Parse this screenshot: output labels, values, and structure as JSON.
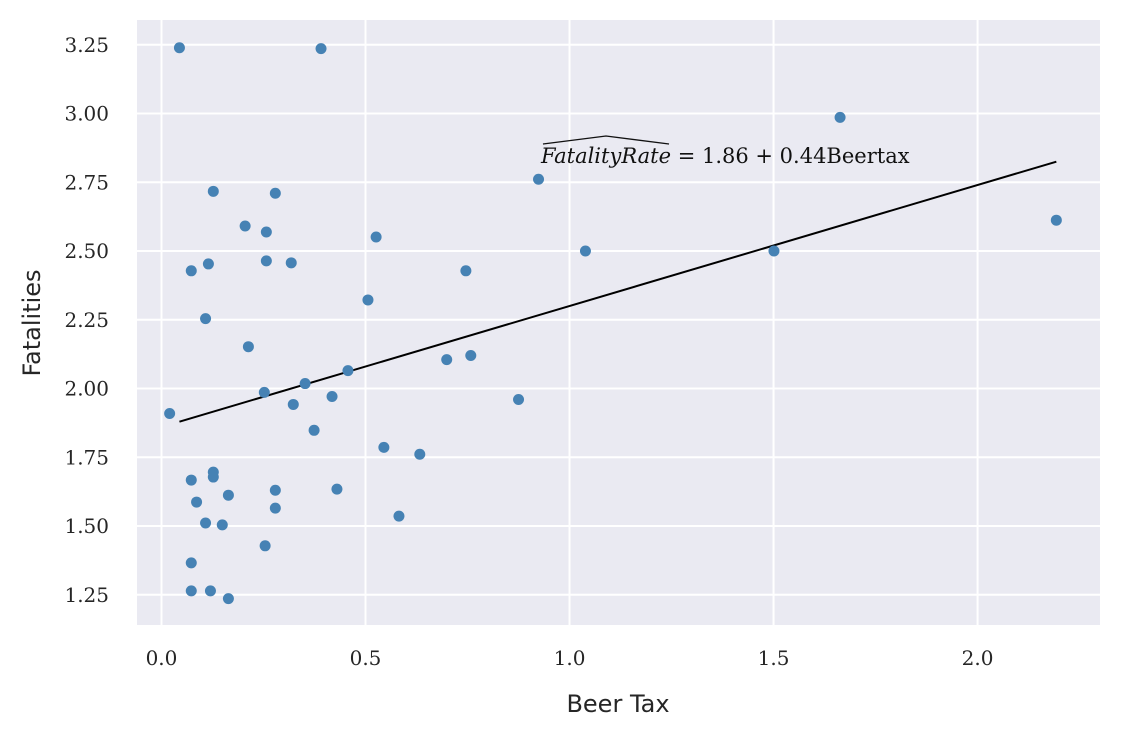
{
  "chart_data": {
    "type": "scatter",
    "title": "",
    "xlabel": "Beer Tax",
    "ylabel": "Fatalities",
    "xlim": [
      -0.06,
      2.3
    ],
    "ylim": [
      1.14,
      3.34
    ],
    "xticks": [
      0.0,
      0.5,
      1.0,
      1.5,
      2.0
    ],
    "xtick_labels": [
      "0.0",
      "0.5",
      "1.0",
      "1.5",
      "2.0"
    ],
    "yticks": [
      1.25,
      1.5,
      1.75,
      2.0,
      2.25,
      2.5,
      2.75,
      3.0,
      3.25
    ],
    "ytick_labels": [
      "1.25",
      "1.50",
      "1.75",
      "2.00",
      "2.25",
      "2.50",
      "2.75",
      "3.00",
      "3.25"
    ],
    "grid": true,
    "colors": {
      "background": "#EAEAF2",
      "grid": "#FFFFFF",
      "points": "#4682B4",
      "line": "#000000"
    },
    "points": [
      [
        0.044,
        3.239
      ],
      [
        0.391,
        3.236
      ],
      [
        1.663,
        2.986
      ],
      [
        0.924,
        2.761
      ],
      [
        2.193,
        2.612
      ],
      [
        0.127,
        2.717
      ],
      [
        0.279,
        2.71
      ],
      [
        0.205,
        2.591
      ],
      [
        0.257,
        2.569
      ],
      [
        0.526,
        2.551
      ],
      [
        1.039,
        2.5
      ],
      [
        1.501,
        2.5
      ],
      [
        0.746,
        2.428
      ],
      [
        0.073,
        2.428
      ],
      [
        0.115,
        2.453
      ],
      [
        0.257,
        2.464
      ],
      [
        0.318,
        2.457
      ],
      [
        0.506,
        2.322
      ],
      [
        0.108,
        2.254
      ],
      [
        0.213,
        2.152
      ],
      [
        0.758,
        2.12
      ],
      [
        0.699,
        2.105
      ],
      [
        0.457,
        2.065
      ],
      [
        0.352,
        2.018
      ],
      [
        0.252,
        1.986
      ],
      [
        0.02,
        1.909
      ],
      [
        0.418,
        1.971
      ],
      [
        0.323,
        1.942
      ],
      [
        0.875,
        1.96
      ],
      [
        0.374,
        1.848
      ],
      [
        0.545,
        1.786
      ],
      [
        0.633,
        1.761
      ],
      [
        0.127,
        1.696
      ],
      [
        0.127,
        1.678
      ],
      [
        0.073,
        1.667
      ],
      [
        0.279,
        1.63
      ],
      [
        0.43,
        1.634
      ],
      [
        0.164,
        1.612
      ],
      [
        0.086,
        1.587
      ],
      [
        0.279,
        1.565
      ],
      [
        0.582,
        1.536
      ],
      [
        0.108,
        1.511
      ],
      [
        0.149,
        1.504
      ],
      [
        0.254,
        1.428
      ],
      [
        0.073,
        1.366
      ],
      [
        0.12,
        1.264
      ],
      [
        0.073,
        1.264
      ],
      [
        0.164,
        1.236
      ]
    ],
    "fit_line": {
      "intercept": 1.86,
      "slope": 0.44,
      "x_range": [
        0.044,
        2.193
      ]
    },
    "annotation": {
      "lhs": "FatalityRate",
      "rhs": " = 1.86 + 0.44Beertax",
      "x": 0.93,
      "y": 2.82
    }
  }
}
